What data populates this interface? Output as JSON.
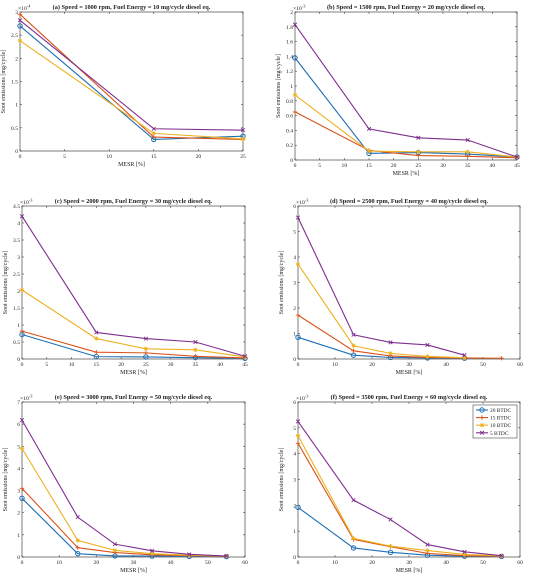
{
  "colors": {
    "20 BTDC": "#1f6fb4",
    "15 BTDC": "#d95319",
    "10 BTDC": "#edb120",
    "5 BTDC": "#7e2f8e"
  },
  "chart_data": [
    {
      "type": "line",
      "title": "(a) Speed = 1000 rpm, Fuel Energy = 10 mg/cycle diesel eq.",
      "xlabel": "MESR [%]",
      "ylabel": "Soot emissions [mg/cycle]",
      "multiplier_base": "×10",
      "multiplier_exp": "-4",
      "xlim": [
        0,
        25
      ],
      "ylim": [
        0,
        3
      ],
      "xticks": [
        0,
        5,
        10,
        15,
        20,
        25
      ],
      "yticks": [
        0,
        0.5,
        1,
        1.5,
        2,
        2.5,
        3
      ],
      "series": [
        {
          "name": "20 BTDC",
          "x": [
            0,
            15,
            25
          ],
          "y": [
            2.7,
            0.25,
            0.32
          ]
        },
        {
          "name": "15 BTDC",
          "x": [
            0,
            15,
            25
          ],
          "y": [
            2.95,
            0.3,
            0.25
          ]
        },
        {
          "name": "10 BTDC",
          "x": [
            0,
            15,
            25
          ],
          "y": [
            2.38,
            0.38,
            0.26
          ]
        },
        {
          "name": "5 BTDC",
          "x": [
            0,
            15,
            25
          ],
          "y": [
            2.82,
            0.48,
            0.45
          ]
        }
      ]
    },
    {
      "type": "line",
      "title": "(b) Speed = 1500 rpm, Fuel Energy = 20 mg/cycle diesel eq.",
      "xlabel": "MESR [%]",
      "ylabel": "Soot emissions [mg/cycle]",
      "multiplier_base": "×10",
      "multiplier_exp": "-3",
      "xlim": [
        0,
        45
      ],
      "ylim": [
        0,
        2
      ],
      "xticks": [
        0,
        5,
        10,
        15,
        20,
        25,
        30,
        35,
        40,
        45
      ],
      "yticks": [
        0,
        0.2,
        0.4,
        0.6,
        0.8,
        1,
        1.2,
        1.4,
        1.6,
        1.8,
        2
      ],
      "series": [
        {
          "name": "20 BTDC",
          "x": [
            0,
            15,
            25,
            35,
            45
          ],
          "y": [
            1.38,
            0.09,
            0.1,
            0.08,
            0.04
          ]
        },
        {
          "name": "15 BTDC",
          "x": [
            0,
            15,
            25,
            35,
            45
          ],
          "y": [
            0.65,
            0.13,
            0.06,
            0.05,
            0.03
          ]
        },
        {
          "name": "10 BTDC",
          "x": [
            0,
            15,
            25,
            35,
            45
          ],
          "y": [
            0.88,
            0.12,
            0.11,
            0.11,
            0.04
          ]
        },
        {
          "name": "5 BTDC",
          "x": [
            0,
            15,
            25,
            35,
            45
          ],
          "y": [
            1.83,
            0.42,
            0.3,
            0.27,
            0.04
          ]
        }
      ]
    },
    {
      "type": "line",
      "title": "(c) Speed = 2000 rpm, Fuel Energy = 30 mg/cycle diesel eq.",
      "xlabel": "MESR [%]",
      "ylabel": "Soot emissions [mg/cycle]",
      "multiplier_base": "×10",
      "multiplier_exp": "-3",
      "xlim": [
        0,
        45
      ],
      "ylim": [
        0,
        4.5
      ],
      "xticks": [
        0,
        5,
        10,
        15,
        20,
        25,
        30,
        35,
        40,
        45
      ],
      "yticks": [
        0,
        0.5,
        1,
        1.5,
        2,
        2.5,
        3,
        3.5,
        4,
        4.5
      ],
      "series": [
        {
          "name": "20 BTDC",
          "x": [
            0,
            15,
            25,
            35,
            45
          ],
          "y": [
            0.72,
            0.07,
            0.06,
            0.04,
            0.02
          ]
        },
        {
          "name": "15 BTDC",
          "x": [
            0,
            15,
            25,
            35,
            45
          ],
          "y": [
            0.82,
            0.2,
            0.18,
            0.08,
            0.03
          ]
        },
        {
          "name": "10 BTDC",
          "x": [
            0,
            15,
            25,
            35,
            45
          ],
          "y": [
            2.03,
            0.6,
            0.3,
            0.27,
            0.06
          ]
        },
        {
          "name": "5 BTDC",
          "x": [
            0,
            15,
            25,
            35,
            45
          ],
          "y": [
            4.2,
            0.78,
            0.6,
            0.5,
            0.08
          ]
        }
      ]
    },
    {
      "type": "line",
      "title": "(d) Speed = 2500 rpm, Fuel Energy = 40 mg/cycle diesel eq.",
      "xlabel": "MESR [%]",
      "ylabel": "Soot emissions [mg/cycle]",
      "multiplier_base": "×10",
      "multiplier_exp": "-3",
      "xlim": [
        0,
        60
      ],
      "ylim": [
        0,
        6
      ],
      "xticks": [
        0,
        10,
        20,
        30,
        40,
        50,
        60
      ],
      "yticks": [
        0,
        1,
        2,
        3,
        4,
        5,
        6
      ],
      "series": [
        {
          "name": "20 BTDC",
          "x": [
            0,
            15,
            25,
            35,
            45
          ],
          "y": [
            0.85,
            0.15,
            0.06,
            0.04,
            0.03
          ]
        },
        {
          "name": "15 BTDC",
          "x": [
            0,
            15,
            25,
            35,
            45,
            55
          ],
          "y": [
            1.72,
            0.32,
            0.12,
            0.06,
            0.04,
            0.03
          ]
        },
        {
          "name": "10 BTDC",
          "x": [
            0,
            15,
            25,
            35,
            45
          ],
          "y": [
            3.72,
            0.52,
            0.22,
            0.1,
            0.05
          ]
        },
        {
          "name": "5 BTDC",
          "x": [
            0,
            15,
            25,
            35,
            45
          ],
          "y": [
            5.55,
            0.95,
            0.65,
            0.55,
            0.15
          ]
        }
      ]
    },
    {
      "type": "line",
      "title": "(e) Speed = 3000 rpm, Fuel Energy = 50 mg/cycle diesel eq.",
      "xlabel": "MESR [%]",
      "ylabel": "Soot emissions [mg/cycle]",
      "multiplier_base": "×10",
      "multiplier_exp": "-3",
      "xlim": [
        0,
        60
      ],
      "ylim": [
        0,
        7
      ],
      "xticks": [
        0,
        10,
        20,
        30,
        40,
        50,
        60
      ],
      "yticks": [
        0,
        1,
        2,
        3,
        4,
        5,
        6,
        7
      ],
      "series": [
        {
          "name": "20 BTDC",
          "x": [
            0,
            15,
            25,
            35,
            45,
            55
          ],
          "y": [
            2.65,
            0.15,
            0.05,
            0.04,
            0.03,
            0.02
          ]
        },
        {
          "name": "15 BTDC",
          "x": [
            0,
            15,
            25,
            35,
            45,
            55
          ],
          "y": [
            3.1,
            0.42,
            0.2,
            0.1,
            0.06,
            0.03
          ]
        },
        {
          "name": "10 BTDC",
          "x": [
            0,
            15,
            25,
            35,
            45,
            55
          ],
          "y": [
            4.9,
            0.75,
            0.3,
            0.15,
            0.08,
            0.04
          ]
        },
        {
          "name": "5 BTDC",
          "x": [
            0,
            15,
            25,
            35,
            45,
            55
          ],
          "y": [
            6.18,
            1.8,
            0.58,
            0.28,
            0.12,
            0.04
          ]
        }
      ]
    },
    {
      "type": "line",
      "title": "(f) Speed = 3500 rpm, Fuel Energy = 60 mg/cycle diesel eq.",
      "xlabel": "MESR [%]",
      "ylabel": "Soot emissions [mg/cycle]",
      "multiplier_base": "×10",
      "multiplier_exp": "-3",
      "xlim": [
        0,
        60
      ],
      "ylim": [
        0,
        6
      ],
      "xticks": [
        0,
        10,
        20,
        30,
        40,
        50,
        60
      ],
      "yticks": [
        0,
        1,
        2,
        3,
        4,
        5,
        6
      ],
      "legend": "top-right",
      "series": [
        {
          "name": "20 BTDC",
          "x": [
            0,
            15,
            25,
            35,
            45,
            55
          ],
          "y": [
            1.92,
            0.35,
            0.18,
            0.07,
            0.03,
            0.02
          ]
        },
        {
          "name": "15 BTDC",
          "x": [
            0,
            15,
            25,
            35,
            45,
            55
          ],
          "y": [
            4.4,
            0.68,
            0.4,
            0.14,
            0.05,
            0.03
          ]
        },
        {
          "name": "10 BTDC",
          "x": [
            0,
            15,
            25,
            35,
            45,
            55
          ],
          "y": [
            4.7,
            0.72,
            0.42,
            0.25,
            0.1,
            0.04
          ]
        },
        {
          "name": "5 BTDC",
          "x": [
            0,
            15,
            25,
            35,
            45,
            55
          ],
          "y": [
            5.25,
            2.2,
            1.45,
            0.48,
            0.2,
            0.05
          ]
        }
      ]
    }
  ]
}
